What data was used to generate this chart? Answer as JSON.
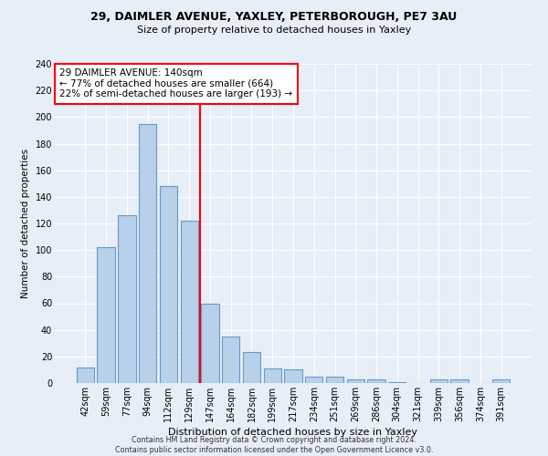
{
  "title1": "29, DAIMLER AVENUE, YAXLEY, PETERBOROUGH, PE7 3AU",
  "title2": "Size of property relative to detached houses in Yaxley",
  "xlabel": "Distribution of detached houses by size in Yaxley",
  "ylabel": "Number of detached properties",
  "categories": [
    "42sqm",
    "59sqm",
    "77sqm",
    "94sqm",
    "112sqm",
    "129sqm",
    "147sqm",
    "164sqm",
    "182sqm",
    "199sqm",
    "217sqm",
    "234sqm",
    "251sqm",
    "269sqm",
    "286sqm",
    "304sqm",
    "321sqm",
    "339sqm",
    "356sqm",
    "374sqm",
    "391sqm"
  ],
  "values": [
    12,
    102,
    126,
    195,
    148,
    122,
    60,
    35,
    23,
    11,
    10,
    5,
    5,
    3,
    3,
    1,
    0,
    3,
    3,
    0,
    3
  ],
  "bar_color": "#b8d0ea",
  "bar_edge_color": "#6699cc",
  "vline_x": 6.0,
  "vline_color": "red",
  "annotation_text": "29 DAIMLER AVENUE: 140sqm\n← 77% of detached houses are smaller (664)\n22% of semi-detached houses are larger (193) →",
  "annotation_box_color": "white",
  "annotation_box_edge_color": "red",
  "ylim": [
    0,
    240
  ],
  "yticks": [
    0,
    20,
    40,
    60,
    80,
    100,
    120,
    140,
    160,
    180,
    200,
    220,
    240
  ],
  "footnote": "Contains HM Land Registry data © Crown copyright and database right 2024.\nContains public sector information licensed under the Open Government Licence v3.0.",
  "bg_color": "#e8eef8",
  "plot_bg_color": "#e8eef8"
}
